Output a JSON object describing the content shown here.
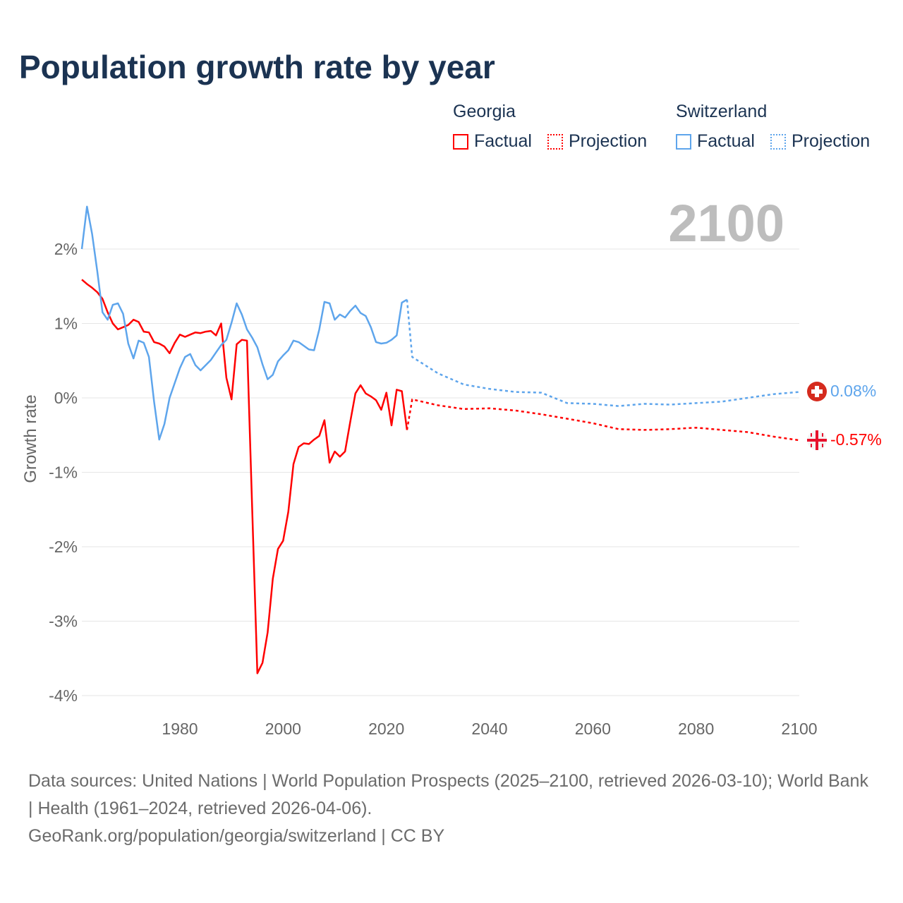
{
  "title": "Population growth rate by year",
  "legend": {
    "groups": [
      {
        "name": "Georgia",
        "factual": "Factual",
        "projection": "Projection",
        "color": "#ff0000"
      },
      {
        "name": "Switzerland",
        "factual": "Factual",
        "projection": "Projection",
        "color": "#5ea5ec"
      }
    ]
  },
  "year_display": "2100",
  "end_labels": {
    "georgia": "-0.57%",
    "switzerland": "0.08%"
  },
  "footer": {
    "sources": "Data sources: United Nations | World Population Prospects (2025–2100, retrieved 2026-03-10); World Bank | Health (1961–2024, retrieved 2026-04-06).",
    "link": "GeoRank.org/population/georgia/switzerland | CC BY"
  },
  "chart_data": {
    "type": "line",
    "title": "Population growth rate by year",
    "xlabel": "",
    "ylabel": "Growth rate",
    "xlim": [
      1961,
      2100
    ],
    "ylim": [
      -4.2,
      2.7
    ],
    "xticks": [
      1980,
      2000,
      2020,
      2040,
      2060,
      2080,
      2100
    ],
    "xtick_labels": [
      "1980",
      "2000",
      "2020",
      "2040",
      "2060",
      "2080",
      "2100"
    ],
    "yticks": [
      2,
      1,
      0,
      -1,
      -2,
      -3,
      -4
    ],
    "ytick_labels": [
      "2%",
      "1%",
      "0%",
      "-1%",
      "-2%",
      "-3%",
      "-4%"
    ],
    "grid": true,
    "legend_position": "top-right",
    "series": [
      {
        "name": "Georgia Factual",
        "color": "#ff0000",
        "style": "solid",
        "x_start": 1961,
        "values": [
          1.59,
          1.53,
          1.48,
          1.42,
          1.33,
          1.15,
          1.0,
          0.92,
          0.95,
          0.98,
          1.05,
          1.02,
          0.89,
          0.88,
          0.75,
          0.73,
          0.69,
          0.6,
          0.74,
          0.85,
          0.82,
          0.85,
          0.88,
          0.87,
          0.89,
          0.9,
          0.84,
          1.0,
          0.27,
          -0.02,
          0.72,
          0.78,
          0.77,
          -1.47,
          -3.7,
          -3.56,
          -3.15,
          -2.43,
          -2.03,
          -1.92,
          -1.53,
          -0.89,
          -0.66,
          -0.61,
          -0.62,
          -0.56,
          -0.51,
          -0.3,
          -0.87,
          -0.72,
          -0.79,
          -0.72,
          -0.32,
          0.06,
          0.17,
          0.06,
          0.02,
          -0.03,
          -0.16,
          0.07,
          -0.37,
          0.11,
          0.09,
          -0.43
        ]
      },
      {
        "name": "Georgia Projection",
        "color": "#ff0000",
        "style": "dotted",
        "x": [
          2024,
          2025,
          2030,
          2035,
          2040,
          2045,
          2050,
          2055,
          2060,
          2065,
          2070,
          2075,
          2080,
          2085,
          2090,
          2095,
          2100
        ],
        "values": [
          -0.43,
          -0.02,
          -0.1,
          -0.15,
          -0.14,
          -0.17,
          -0.22,
          -0.28,
          -0.34,
          -0.42,
          -0.43,
          -0.42,
          -0.4,
          -0.43,
          -0.46,
          -0.52,
          -0.57
        ]
      },
      {
        "name": "Switzerland Factual",
        "color": "#5ea5ec",
        "style": "solid",
        "x_start": 1961,
        "values": [
          2.0,
          2.57,
          2.2,
          1.7,
          1.15,
          1.05,
          1.25,
          1.27,
          1.13,
          0.73,
          0.53,
          0.77,
          0.74,
          0.55,
          -0.05,
          -0.56,
          -0.35,
          0.0,
          0.2,
          0.4,
          0.55,
          0.59,
          0.44,
          0.37,
          0.44,
          0.51,
          0.61,
          0.71,
          0.78,
          1.01,
          1.27,
          1.12,
          0.92,
          0.81,
          0.68,
          0.45,
          0.25,
          0.31,
          0.49,
          0.57,
          0.64,
          0.77,
          0.75,
          0.7,
          0.65,
          0.64,
          0.92,
          1.29,
          1.27,
          1.05,
          1.12,
          1.08,
          1.17,
          1.24,
          1.14,
          1.1,
          0.95,
          0.75,
          0.73,
          0.74,
          0.78,
          0.84,
          1.28,
          1.32
        ]
      },
      {
        "name": "Switzerland Projection",
        "color": "#5ea5ec",
        "style": "dotted",
        "x": [
          2024,
          2025,
          2030,
          2035,
          2040,
          2045,
          2050,
          2055,
          2060,
          2065,
          2070,
          2075,
          2080,
          2085,
          2090,
          2095,
          2100
        ],
        "values": [
          1.32,
          0.55,
          0.33,
          0.18,
          0.12,
          0.08,
          0.07,
          -0.07,
          -0.08,
          -0.11,
          -0.08,
          -0.09,
          -0.07,
          -0.05,
          0.0,
          0.05,
          0.08
        ]
      }
    ]
  }
}
